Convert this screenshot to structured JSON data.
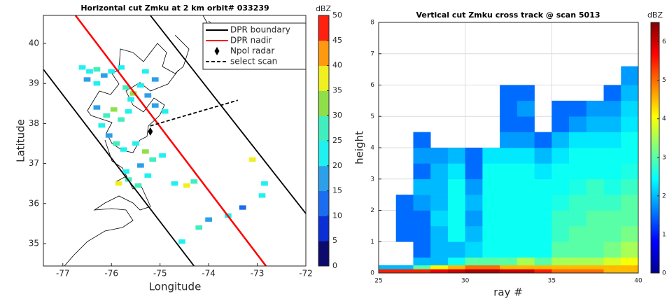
{
  "chart_data": [
    {
      "type": "map",
      "title": "Horizontal cut Zmku at 2 km orbit# 033239",
      "xlabel": "Longitude",
      "ylabel": "Latitude",
      "xlim": [
        -77.4,
        -72
      ],
      "ylim": [
        34.44,
        40.7
      ],
      "xticks": [
        -77,
        -76,
        -75,
        -74,
        -73,
        -72
      ],
      "yticks": [
        35,
        36,
        37,
        38,
        39,
        40
      ],
      "legend": "upper right",
      "series": [
        {
          "name": "DPR boundary",
          "style": "solid",
          "color": "#000000",
          "x": [
            -77.4,
            -74.3,
            null,
            -75.2,
            -72
          ],
          "y": [
            39.35,
            34.44,
            null,
            40.7,
            35.75
          ]
        },
        {
          "name": "DPR nadir",
          "style": "solid",
          "color": "#ff0000",
          "x": [
            -76.74,
            -72.82
          ],
          "y": [
            40.7,
            34.44
          ]
        },
        {
          "name": "Npol radar",
          "style": "marker",
          "color": "#000000",
          "x": [
            -75.2
          ],
          "y": [
            37.8
          ]
        },
        {
          "name": "select scan",
          "style": "dashed",
          "color": "#000000",
          "x": [
            -75.2,
            -73.4
          ],
          "y": [
            37.94,
            38.58
          ]
        }
      ],
      "cells": {
        "lon": [
          -76.6,
          -76.45,
          -76.3,
          -76.15,
          -76.5,
          -76.0,
          -76.3,
          -75.8,
          -75.7,
          -75.55,
          -75.4,
          -75.25,
          -75.6,
          -75.1,
          -75.3,
          -76.1,
          -75.95,
          -75.8,
          -76.2,
          -75.65,
          -76.3,
          -75.9,
          -75.75,
          -75.5,
          -75.3,
          -75.15,
          -74.95,
          -76.05,
          -75.85,
          -75.65,
          -75.45,
          -75.7,
          -75.25,
          -74.7,
          -74.45,
          -74.3,
          -73.1,
          -72.85,
          -74.9,
          -75.1,
          -74.0,
          -74.2,
          -74.55,
          -73.6,
          -72.9,
          -75.4,
          -73.3
        ],
        "lat": [
          39.4,
          39.3,
          39.35,
          39.2,
          39.1,
          39.3,
          39.0,
          39.4,
          38.9,
          38.75,
          38.95,
          38.7,
          38.6,
          39.1,
          39.3,
          38.2,
          38.35,
          38.1,
          37.95,
          38.3,
          38.4,
          37.5,
          37.35,
          37.5,
          37.3,
          37.1,
          37.2,
          37.7,
          36.5,
          36.6,
          36.45,
          36.8,
          36.7,
          36.5,
          36.45,
          36.55,
          37.1,
          36.5,
          38.3,
          38.45,
          35.6,
          35.4,
          35.05,
          35.7,
          36.2,
          36.95,
          35.9
        ],
        "values": [
          20,
          22,
          25,
          18,
          17,
          20,
          22,
          24,
          26,
          30,
          23,
          18,
          20,
          16,
          22,
          28,
          33,
          26,
          20,
          22,
          17,
          26,
          22,
          20,
          30,
          25,
          20,
          18,
          36,
          28,
          25,
          20,
          22,
          24,
          35,
          28,
          37,
          22,
          20,
          18,
          18,
          26,
          22,
          22,
          20,
          16,
          14
        ]
      },
      "colorbar_label": "dBZ",
      "clim": [
        0,
        50
      ],
      "cticks": [
        0,
        5,
        10,
        15,
        20,
        25,
        30,
        35,
        40,
        45,
        50
      ],
      "colormap": [
        "#0d0a6e",
        "#0b2fd6",
        "#1a6cf0",
        "#2ba0e8",
        "#1ff0f0",
        "#40eebe",
        "#8fe048",
        "#f0f020",
        "#ff9a10",
        "#ff2010"
      ]
    },
    {
      "type": "heatmap",
      "title": "Vertical cut Zmku cross track @ scan 5013",
      "xlabel": "ray #",
      "ylabel": "height",
      "xlim": [
        25,
        40
      ],
      "ylim": [
        0,
        8
      ],
      "xticks": [
        25,
        30,
        35,
        40
      ],
      "yticks": [
        0,
        1,
        2,
        3,
        4,
        5,
        6,
        7,
        8
      ],
      "grid": true,
      "x_bins": [
        25,
        26,
        27,
        28,
        29,
        30,
        31,
        32,
        33,
        34,
        35,
        36,
        37,
        38,
        39,
        40
      ],
      "y_bins": [
        0,
        0.125,
        0.25,
        0.5,
        1,
        1.5,
        2,
        2.5,
        3,
        3.5,
        4,
        4.5,
        5,
        5.5,
        6,
        6.6
      ],
      "values": [
        [
          5.5,
          2,
          null,
          null,
          null,
          null,
          null,
          null,
          null,
          null,
          null,
          null,
          null,
          null,
          null
        ],
        [
          5.5,
          2,
          null,
          null,
          1.5,
          1.5,
          1.5,
          null,
          null,
          null,
          null,
          null,
          null,
          null,
          null
        ],
        [
          5.5,
          3,
          2,
          1.5,
          1.5,
          1.5,
          1.8,
          2,
          1.5,
          1.8,
          1.5,
          null,
          null,
          null,
          null
        ],
        [
          5.8,
          4,
          2,
          2,
          2,
          2.2,
          2,
          2,
          2,
          1.8,
          null,
          null,
          null,
          null,
          null
        ],
        [
          6,
          4.5,
          2.5,
          2,
          2.5,
          2.5,
          2.5,
          2.5,
          2.3,
          2,
          null,
          null,
          null,
          null,
          null
        ],
        [
          6.2,
          5,
          3,
          2.2,
          2,
          1.8,
          2,
          1.8,
          1.5,
          1.5,
          null,
          null,
          null,
          null,
          null
        ],
        [
          6.2,
          5,
          3,
          2.5,
          2.5,
          2.5,
          2.5,
          2.5,
          2.5,
          2.3,
          null,
          null,
          null,
          null,
          null
        ],
        [
          6,
          4.5,
          3,
          2.5,
          2.5,
          2.5,
          2.5,
          2.5,
          2.5,
          2.3,
          1.8,
          1.5,
          1.5,
          1.5,
          null
        ],
        [
          6,
          4.5,
          3.5,
          2.5,
          2.5,
          2.5,
          2.5,
          2.5,
          2.5,
          2.3,
          1.8,
          1.5,
          1.8,
          1.5,
          null
        ],
        [
          5.5,
          4.5,
          3,
          2.5,
          2.5,
          2.5,
          2.5,
          2.5,
          2.3,
          2,
          1.5,
          null,
          null,
          null,
          null
        ],
        [
          5,
          4.5,
          3.5,
          3,
          2.8,
          2.8,
          2.6,
          2.5,
          2.5,
          2.3,
          2,
          1.5,
          1.5,
          null,
          null
        ],
        [
          5,
          4.5,
          3.5,
          3,
          3,
          2.8,
          2.8,
          2.6,
          2.5,
          2.5,
          2.3,
          1.8,
          1.5,
          null,
          null
        ],
        [
          5,
          4.5,
          3.5,
          3,
          3,
          3,
          2.8,
          2.8,
          2.5,
          2.5,
          2.3,
          2,
          1.8,
          null,
          null
        ],
        [
          4.5,
          4.5,
          3.8,
          3.2,
          3,
          3,
          2.8,
          2.6,
          2.5,
          2.5,
          2.3,
          2,
          1.8,
          1.5,
          null
        ],
        [
          4.5,
          4.5,
          4,
          3.5,
          3.2,
          3,
          3,
          2.8,
          2.6,
          2.5,
          2.5,
          2.3,
          2.2,
          2,
          1.8
        ]
      ],
      "colorbar_label": "dBZ",
      "clim": [
        0,
        6.5
      ],
      "cticks": [
        0,
        1,
        2,
        3,
        4,
        5,
        6
      ],
      "colormap": "jet"
    }
  ]
}
